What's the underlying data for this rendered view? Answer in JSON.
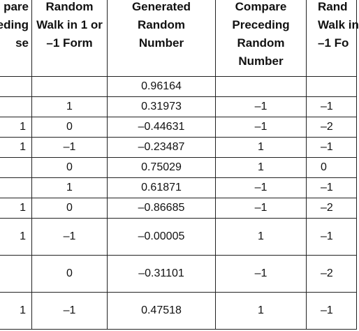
{
  "table": {
    "headers": [
      [
        "pare",
        "eding",
        "se"
      ],
      [
        "Random",
        "Walk in 1 or",
        "–1 Form"
      ],
      [
        "Generated",
        "Random",
        "Number"
      ],
      [
        "Compare",
        "Preceding",
        "Random",
        "Number"
      ],
      [
        "Rand",
        "Walk in",
        "–1 Fo"
      ]
    ],
    "rows": [
      [
        "",
        "",
        "0.96164",
        "",
        ""
      ],
      [
        "",
        "1",
        "0.31973",
        "–1",
        "–1"
      ],
      [
        "1",
        "0",
        "–0.44631",
        "–1",
        "–2"
      ],
      [
        "1",
        "–1",
        "–0.23487",
        "1",
        "–1"
      ],
      [
        "",
        "0",
        "0.75029",
        "1",
        "0"
      ],
      [
        "",
        "1",
        "0.61871",
        "–1",
        "–1"
      ],
      [
        "1",
        "0",
        "–0.86685",
        "–1",
        "–2"
      ],
      [
        "1",
        "–1",
        "–0.00005",
        "1",
        "–1"
      ],
      [
        "",
        "0",
        "–0.31101",
        "–1",
        "–2"
      ],
      [
        "1",
        "–1",
        "0.47518",
        "1",
        "–1"
      ]
    ]
  }
}
